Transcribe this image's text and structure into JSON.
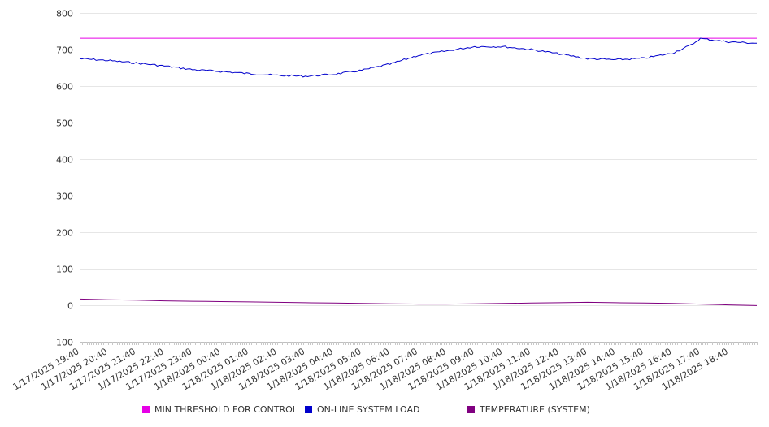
{
  "chart_data": {
    "type": "line",
    "ylim": [
      -100,
      800
    ],
    "y_ticks": [
      "800",
      "700",
      "600",
      "500",
      "400",
      "300",
      "200",
      "100",
      "0",
      "-100"
    ],
    "x_tick_labels": [
      "1/17/2025 19:40",
      "1/17/2025 20:40",
      "1/17/2025 21:40",
      "1/17/2025 22:40",
      "1/17/2025 23:40",
      "1/18/2025 00:40",
      "1/18/2025 01:40",
      "1/18/2025 02:40",
      "1/18/2025 03:40",
      "1/18/2025 04:40",
      "1/18/2025 05:40",
      "1/18/2025 06:40",
      "1/18/2025 07:40",
      "1/18/2025 08:40",
      "1/18/2025 09:40",
      "1/18/2025 10:40",
      "1/18/2025 11:40",
      "1/18/2025 12:40",
      "1/18/2025 13:40",
      "1/18/2025 14:40",
      "1/18/2025 15:40",
      "1/18/2025 16:40",
      "1/18/2025 17:40",
      "1/18/2025 18:40"
    ],
    "grid": true,
    "legend_position": "bottom",
    "series": [
      {
        "name": "MIN THRESHOLD FOR CONTROL",
        "color": "#e600e6",
        "x": [
          "1/17/2025 19:40",
          "1/18/2025 19:40"
        ],
        "values": [
          731,
          731
        ]
      },
      {
        "name": "ON-LINE SYSTEM LOAD",
        "color": "#0000cc",
        "x": [
          "1/17/2025 19:40",
          "1/17/2025 20:40",
          "1/17/2025 21:40",
          "1/17/2025 22:40",
          "1/17/2025 23:40",
          "1/18/2025 00:40",
          "1/18/2025 01:40",
          "1/18/2025 02:40",
          "1/18/2025 03:40",
          "1/18/2025 04:40",
          "1/18/2025 05:40",
          "1/18/2025 06:40",
          "1/18/2025 07:40",
          "1/18/2025 08:40",
          "1/18/2025 09:40",
          "1/18/2025 10:40",
          "1/18/2025 11:40",
          "1/18/2025 12:40",
          "1/18/2025 13:40",
          "1/18/2025 14:40",
          "1/18/2025 15:40",
          "1/18/2025 16:40",
          "1/18/2025 17:20",
          "1/18/2025 17:40",
          "1/18/2025 18:40",
          "1/18/2025 19:40"
        ],
        "values": [
          675,
          670,
          663,
          655,
          645,
          640,
          634,
          629,
          627,
          632,
          643,
          660,
          684,
          696,
          708,
          708,
          700,
          688,
          675,
          672,
          676,
          690,
          712,
          730,
          721,
          717
        ]
      },
      {
        "name": "TEMPERATURE (SYSTEM)",
        "color": "#800080",
        "x": [
          "1/17/2025 19:40",
          "1/17/2025 20:40",
          "1/17/2025 21:40",
          "1/17/2025 22:40",
          "1/17/2025 23:40",
          "1/18/2025 00:40",
          "1/18/2025 01:40",
          "1/18/2025 02:40",
          "1/18/2025 03:40",
          "1/18/2025 04:40",
          "1/18/2025 05:40",
          "1/18/2025 06:40",
          "1/18/2025 07:40",
          "1/18/2025 08:40",
          "1/18/2025 09:40",
          "1/18/2025 10:40",
          "1/18/2025 11:40",
          "1/18/2025 12:40",
          "1/18/2025 13:40",
          "1/18/2025 14:40",
          "1/18/2025 15:40",
          "1/18/2025 16:40",
          "1/18/2025 17:40",
          "1/18/2025 18:40",
          "1/18/2025 19:40"
        ],
        "values": [
          17,
          15,
          14,
          12,
          11,
          10,
          9,
          8,
          7,
          6,
          5,
          4,
          3,
          3,
          4,
          5,
          6,
          7,
          8,
          7,
          6,
          5,
          3,
          1,
          -1
        ]
      }
    ]
  }
}
